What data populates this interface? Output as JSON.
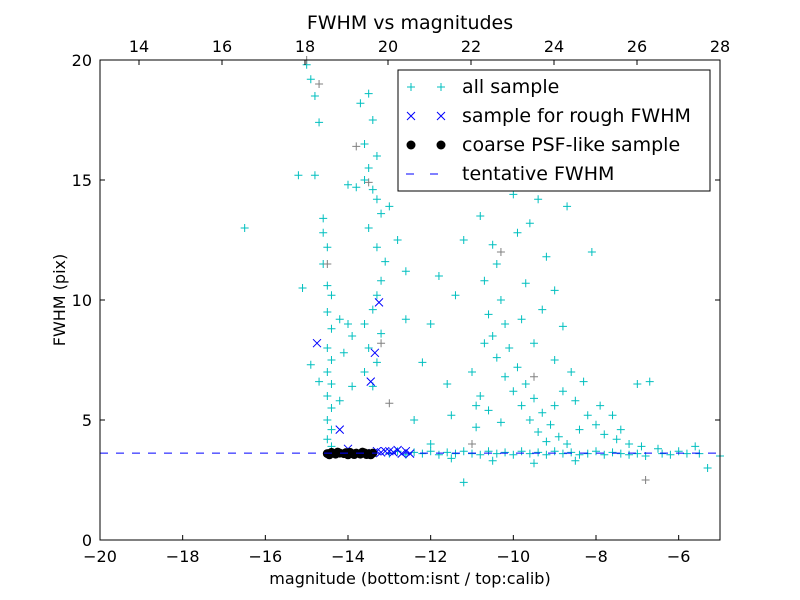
{
  "chart_data": {
    "type": "scatter",
    "title": "FWHM vs magnitudes",
    "xlabel": "magnitude (bottom:isnt / top:calib)",
    "ylabel": "FWHM (pix)",
    "xlim": [
      -20,
      -5
    ],
    "ylim": [
      0,
      20
    ],
    "top_xlim": [
      13.06,
      28
    ],
    "xticks": [
      -20,
      -18,
      -16,
      -14,
      -12,
      -10,
      -8,
      -6
    ],
    "xtick_labels": [
      "−20",
      "−18",
      "−16",
      "−14",
      "−12",
      "−10",
      "−8",
      "−6"
    ],
    "top_xticks": [
      14,
      16,
      18,
      20,
      22,
      24,
      26,
      28
    ],
    "yticks": [
      0,
      5,
      10,
      15,
      20
    ],
    "legend_position": "top-right",
    "grid": false,
    "tentative_fwhm": 3.62,
    "colors": {
      "all": "#00bfbf",
      "grey": "#808080",
      "rough": "#0000ff",
      "coarse": "#000000",
      "tentative": "#0000ff"
    },
    "series": [
      {
        "name": "all sample",
        "marker": "+",
        "points": [
          [
            -15.0,
            19.8
          ],
          [
            -14.9,
            19.2
          ],
          [
            -14.8,
            18.5
          ],
          [
            -14.7,
            17.4
          ],
          [
            -14.8,
            15.2
          ],
          [
            -14.6,
            13.4
          ],
          [
            -14.6,
            12.8
          ],
          [
            -14.5,
            12.2
          ],
          [
            -14.6,
            11.5
          ],
          [
            -14.5,
            10.6
          ],
          [
            -14.4,
            10.2
          ],
          [
            -14.5,
            9.5
          ],
          [
            -14.4,
            8.8
          ],
          [
            -14.5,
            8.0
          ],
          [
            -14.4,
            7.5
          ],
          [
            -14.5,
            7.0
          ],
          [
            -14.4,
            6.5
          ],
          [
            -14.5,
            6.0
          ],
          [
            -14.4,
            5.5
          ],
          [
            -14.5,
            5.0
          ],
          [
            -14.4,
            4.6
          ],
          [
            -14.5,
            4.2
          ],
          [
            -14.4,
            3.9
          ],
          [
            -14.7,
            6.6
          ],
          [
            -14.9,
            7.3
          ],
          [
            -15.1,
            10.5
          ],
          [
            -14.2,
            9.2
          ],
          [
            -14.0,
            9.0
          ],
          [
            -13.9,
            8.5
          ],
          [
            -14.1,
            7.8
          ],
          [
            -13.9,
            6.4
          ],
          [
            -14.2,
            5.8
          ],
          [
            -13.7,
            18.2
          ],
          [
            -13.5,
            18.6
          ],
          [
            -13.4,
            17.5
          ],
          [
            -13.6,
            16.5
          ],
          [
            -13.3,
            16.0
          ],
          [
            -13.5,
            15.5
          ],
          [
            -13.6,
            15.0
          ],
          [
            -13.4,
            14.6
          ],
          [
            -13.3,
            14.2
          ],
          [
            -13.2,
            13.6
          ],
          [
            -13.5,
            13.0
          ],
          [
            -13.3,
            12.2
          ],
          [
            -13.1,
            11.6
          ],
          [
            -13.2,
            10.8
          ],
          [
            -13.3,
            10.2
          ],
          [
            -13.4,
            9.6
          ],
          [
            -13.6,
            9.0
          ],
          [
            -13.2,
            8.6
          ],
          [
            -13.5,
            8.0
          ],
          [
            -13.3,
            7.4
          ],
          [
            -13.6,
            7.0
          ],
          [
            -13.4,
            6.4
          ],
          [
            -13.0,
            13.9
          ],
          [
            -12.8,
            12.5
          ],
          [
            -12.6,
            11.2
          ],
          [
            -14.0,
            14.8
          ],
          [
            -13.8,
            14.7
          ],
          [
            -16.5,
            13.0
          ],
          [
            -15.2,
            15.2
          ],
          [
            -12.2,
            7.4
          ],
          [
            -12.0,
            9.0
          ],
          [
            -11.8,
            11.0
          ],
          [
            -11.6,
            6.5
          ],
          [
            -11.4,
            10.2
          ],
          [
            -11.5,
            5.2
          ],
          [
            -11.2,
            12.5
          ],
          [
            -11.0,
            7.0
          ],
          [
            -10.9,
            5.6
          ],
          [
            -10.7,
            8.2
          ],
          [
            -12.6,
            9.2
          ],
          [
            -12.4,
            5.0
          ],
          [
            -10.8,
            13.5
          ],
          [
            -10.6,
            14.8
          ],
          [
            -10.5,
            12.3
          ],
          [
            -10.4,
            11.5
          ],
          [
            -10.7,
            10.8
          ],
          [
            -10.3,
            10.0
          ],
          [
            -10.6,
            9.4
          ],
          [
            -10.2,
            9.0
          ],
          [
            -10.5,
            8.5
          ],
          [
            -10.1,
            8.0
          ],
          [
            -10.4,
            7.6
          ],
          [
            -9.9,
            7.2
          ],
          [
            -10.2,
            6.8
          ],
          [
            -9.7,
            6.5
          ],
          [
            -10.0,
            6.2
          ],
          [
            -9.5,
            5.9
          ],
          [
            -9.8,
            5.6
          ],
          [
            -9.3,
            5.3
          ],
          [
            -9.6,
            5.0
          ],
          [
            -9.1,
            4.8
          ],
          [
            -9.4,
            4.5
          ],
          [
            -8.9,
            4.3
          ],
          [
            -9.2,
            4.1
          ],
          [
            -8.7,
            4.0
          ],
          [
            -10.3,
            4.9
          ],
          [
            -10.6,
            5.4
          ],
          [
            -10.8,
            6.0
          ],
          [
            -9.9,
            12.8
          ],
          [
            -9.6,
            13.2
          ],
          [
            -9.4,
            14.2
          ],
          [
            -9.2,
            11.8
          ],
          [
            -9.0,
            10.4
          ],
          [
            -9.7,
            10.7
          ],
          [
            -9.3,
            9.6
          ],
          [
            -8.8,
            8.9
          ],
          [
            -9.5,
            8.2
          ],
          [
            -9.0,
            7.5
          ],
          [
            -8.6,
            7.0
          ],
          [
            -8.3,
            6.6
          ],
          [
            -8.8,
            6.2
          ],
          [
            -8.5,
            5.8
          ],
          [
            -8.2,
            5.2
          ],
          [
            -8.0,
            4.8
          ],
          [
            -7.8,
            4.4
          ],
          [
            -7.5,
            4.2
          ],
          [
            -7.2,
            4.0
          ],
          [
            -8.1,
            12.0
          ],
          [
            -8.7,
            13.9
          ],
          [
            -10.0,
            14.4
          ],
          [
            -9.8,
            9.2
          ],
          [
            -10.9,
            4.7
          ],
          [
            -9.0,
            5.6
          ],
          [
            -8.4,
            4.6
          ],
          [
            -7.6,
            5.2
          ],
          [
            -7.0,
            6.5
          ],
          [
            -6.7,
            6.6
          ],
          [
            -6.9,
            3.9
          ],
          [
            -6.5,
            3.8
          ],
          [
            -6.0,
            3.7
          ],
          [
            -5.6,
            3.9
          ],
          [
            -5.3,
            3.0
          ],
          [
            -5.0,
            3.5
          ],
          [
            -11.2,
            2.4
          ],
          [
            -12.0,
            4.0
          ],
          [
            -7.9,
            5.6
          ],
          [
            -7.4,
            4.6
          ],
          [
            -13.0,
            3.6
          ],
          [
            -12.8,
            3.7
          ],
          [
            -12.6,
            3.55
          ],
          [
            -12.4,
            3.65
          ],
          [
            -12.2,
            3.6
          ],
          [
            -12.0,
            3.7
          ],
          [
            -11.8,
            3.55
          ],
          [
            -11.6,
            3.65
          ],
          [
            -11.4,
            3.6
          ],
          [
            -11.2,
            3.7
          ],
          [
            -11.0,
            3.6
          ],
          [
            -10.8,
            3.55
          ],
          [
            -10.6,
            3.7
          ],
          [
            -10.4,
            3.6
          ],
          [
            -10.2,
            3.65
          ],
          [
            -10.0,
            3.55
          ],
          [
            -9.8,
            3.7
          ],
          [
            -9.6,
            3.6
          ],
          [
            -9.4,
            3.65
          ],
          [
            -9.2,
            3.55
          ],
          [
            -9.0,
            3.7
          ],
          [
            -8.8,
            3.6
          ],
          [
            -8.6,
            3.65
          ],
          [
            -8.4,
            3.55
          ],
          [
            -8.2,
            3.6
          ],
          [
            -8.0,
            3.7
          ],
          [
            -7.8,
            3.55
          ],
          [
            -7.6,
            3.65
          ],
          [
            -7.4,
            3.6
          ],
          [
            -7.2,
            3.55
          ],
          [
            -7.0,
            3.6
          ],
          [
            -6.8,
            3.5
          ],
          [
            -6.4,
            3.6
          ],
          [
            -6.2,
            3.55
          ],
          [
            -5.8,
            3.6
          ],
          [
            -5.5,
            3.6
          ],
          [
            -11.5,
            3.4
          ],
          [
            -10.5,
            3.3
          ],
          [
            -9.5,
            3.2
          ],
          [
            -8.5,
            3.3
          ]
        ]
      },
      {
        "name": "all sample (grey)",
        "marker": "+",
        "points": [
          [
            -15.0,
            20.0
          ],
          [
            -14.7,
            19.0
          ],
          [
            -13.8,
            16.4
          ],
          [
            -13.5,
            14.9
          ],
          [
            -14.5,
            11.5
          ],
          [
            -13.0,
            5.7
          ],
          [
            -6.8,
            2.5
          ],
          [
            -11.0,
            4.0
          ],
          [
            -9.5,
            6.8
          ],
          [
            -13.2,
            8.2
          ],
          [
            -10.3,
            12.0
          ]
        ]
      },
      {
        "name": "sample for rough FWHM",
        "marker": "x",
        "points": [
          [
            -14.75,
            8.2
          ],
          [
            -13.25,
            9.9
          ],
          [
            -13.35,
            7.8
          ],
          [
            -13.45,
            6.6
          ],
          [
            -14.2,
            4.6
          ],
          [
            -14.0,
            3.8
          ],
          [
            -13.0,
            3.7
          ],
          [
            -12.8,
            3.75
          ],
          [
            -12.6,
            3.7
          ],
          [
            -12.9,
            3.65
          ],
          [
            -13.1,
            3.7
          ],
          [
            -12.7,
            3.6
          ],
          [
            -13.2,
            3.65
          ],
          [
            -12.5,
            3.6
          ],
          [
            -13.3,
            3.7
          ],
          [
            -13.4,
            3.62
          ]
        ]
      },
      {
        "name": "coarse PSF-like sample",
        "marker": "o",
        "points": [
          [
            -14.5,
            3.6
          ],
          [
            -14.4,
            3.65
          ],
          [
            -14.3,
            3.58
          ],
          [
            -14.2,
            3.62
          ],
          [
            -14.1,
            3.6
          ],
          [
            -14.0,
            3.55
          ],
          [
            -13.95,
            3.65
          ],
          [
            -13.9,
            3.6
          ],
          [
            -13.8,
            3.62
          ],
          [
            -13.7,
            3.58
          ],
          [
            -13.6,
            3.63
          ],
          [
            -13.5,
            3.6
          ],
          [
            -13.45,
            3.55
          ],
          [
            -13.4,
            3.62
          ],
          [
            -14.45,
            3.55
          ],
          [
            -14.25,
            3.66
          ],
          [
            -14.05,
            3.64
          ],
          [
            -13.85,
            3.56
          ],
          [
            -13.65,
            3.66
          ],
          [
            -13.55,
            3.56
          ]
        ]
      }
    ],
    "legend": [
      {
        "label": "all sample",
        "marker": "+"
      },
      {
        "label": "sample for rough FWHM",
        "marker": "x"
      },
      {
        "label": "coarse PSF-like sample",
        "marker": "o"
      },
      {
        "label": "tentative FWHM",
        "marker": "--"
      }
    ]
  }
}
